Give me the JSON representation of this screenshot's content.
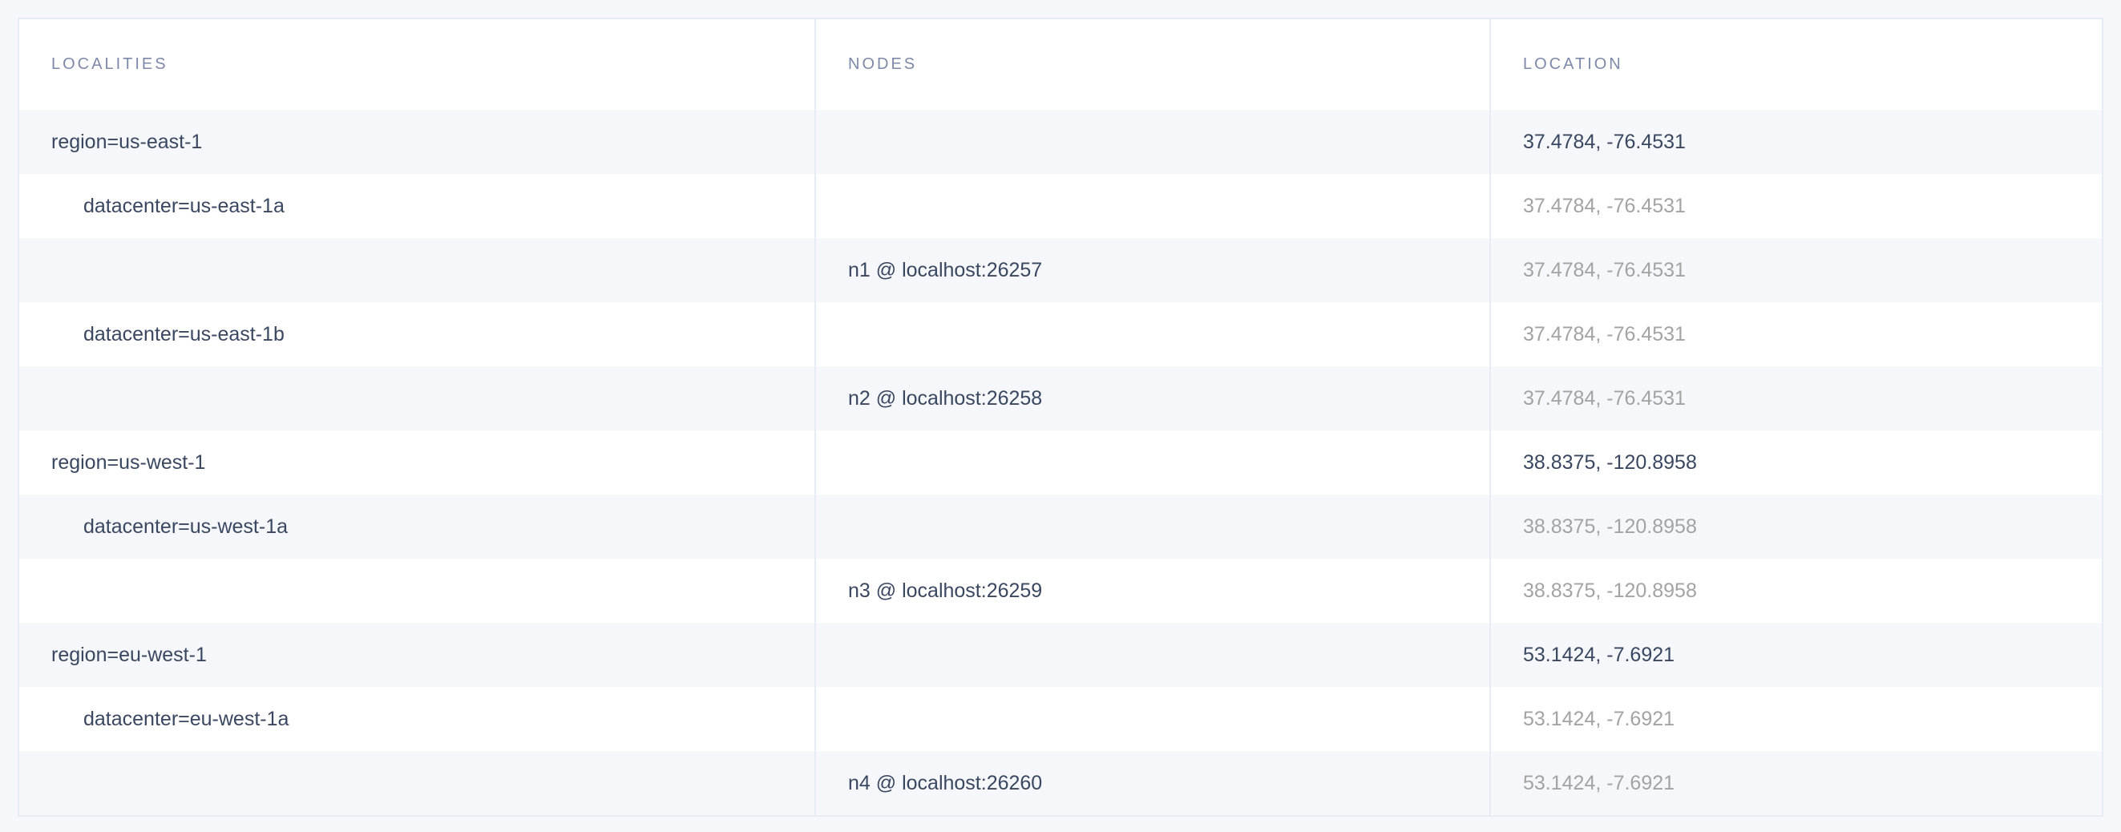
{
  "table": {
    "headers": [
      "LOCALITIES",
      "NODES",
      "LOCATION"
    ],
    "rows": [
      {
        "locality": "region=us-east-1",
        "level": "region",
        "node": "",
        "location": "37.4784, -76.4531"
      },
      {
        "locality": "datacenter=us-east-1a",
        "level": "datacenter",
        "node": "",
        "location": "37.4784, -76.4531"
      },
      {
        "locality": "",
        "level": "node",
        "node": "n1 @ localhost:26257",
        "location": "37.4784, -76.4531"
      },
      {
        "locality": "datacenter=us-east-1b",
        "level": "datacenter",
        "node": "",
        "location": "37.4784, -76.4531"
      },
      {
        "locality": "",
        "level": "node",
        "node": "n2 @ localhost:26258",
        "location": "37.4784, -76.4531"
      },
      {
        "locality": "region=us-west-1",
        "level": "region",
        "node": "",
        "location": "38.8375, -120.8958"
      },
      {
        "locality": "datacenter=us-west-1a",
        "level": "datacenter",
        "node": "",
        "location": "38.8375, -120.8958"
      },
      {
        "locality": "",
        "level": "node",
        "node": "n3 @ localhost:26259",
        "location": "38.8375, -120.8958"
      },
      {
        "locality": "region=eu-west-1",
        "level": "region",
        "node": "",
        "location": "53.1424, -7.6921"
      },
      {
        "locality": "datacenter=eu-west-1a",
        "level": "datacenter",
        "node": "",
        "location": "53.1424, -7.6921"
      },
      {
        "locality": "",
        "level": "node",
        "node": "n4 @ localhost:26260",
        "location": "53.1424, -7.6921"
      }
    ]
  },
  "colors": {
    "text": "#3a4760",
    "muted": "#a3a3a3",
    "header": "#7e89a9",
    "stripe": "#f5f7fa",
    "border": "#e7ebf3"
  }
}
